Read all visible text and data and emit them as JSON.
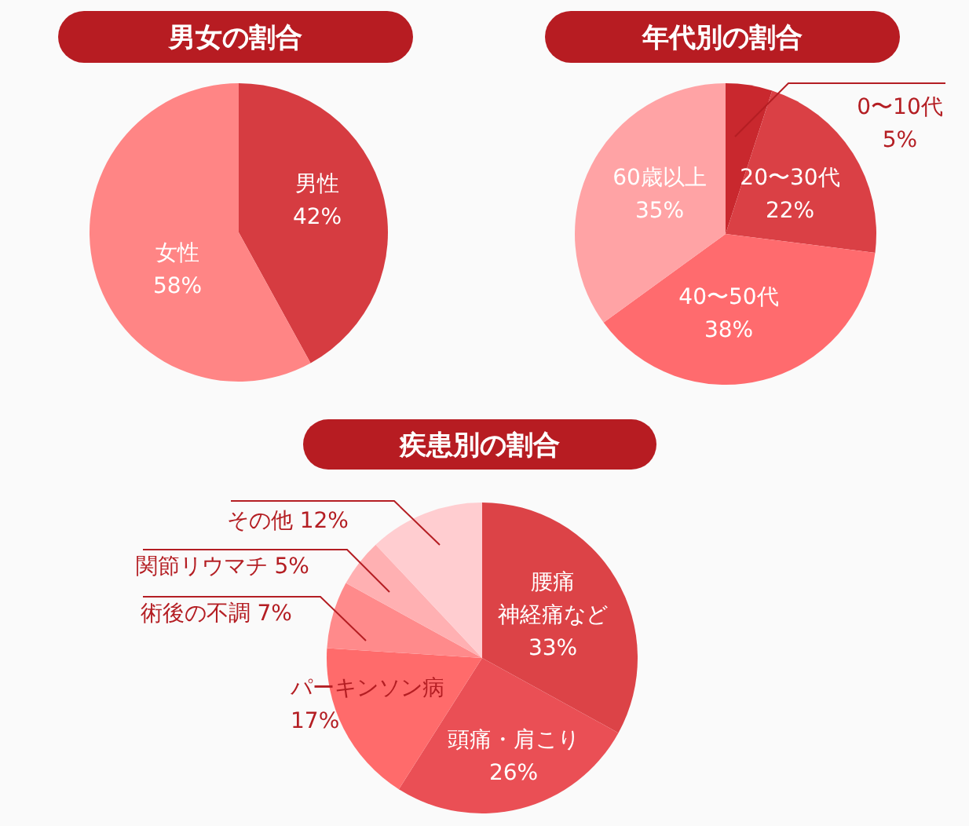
{
  "chart_data": [
    {
      "type": "pie",
      "title": "男女の割合",
      "categories": [
        "男性",
        "女性"
      ],
      "values": [
        42,
        58
      ],
      "value_labels": [
        "42%",
        "58%"
      ],
      "colors": [
        "#d63c41",
        "#ff8585"
      ]
    },
    {
      "type": "pie",
      "title": "年代別の割合",
      "categories": [
        "0〜10代",
        "20〜30代",
        "40〜50代",
        "60歳以上"
      ],
      "values": [
        5,
        22,
        38,
        35
      ],
      "value_labels": [
        "5%",
        "22%",
        "38%",
        "35%"
      ],
      "colors": [
        "#c9282e",
        "#da4045",
        "#ff6b6e",
        "#ffa3a5"
      ]
    },
    {
      "type": "pie",
      "title": "疾患別の割合",
      "categories": [
        "腰痛神経痛など",
        "頭痛・肩こり",
        "パーキンソン病",
        "術後の不調",
        "関節リウマチ",
        "その他"
      ],
      "values": [
        33,
        26,
        17,
        7,
        5,
        12
      ],
      "value_labels": [
        "33%",
        "26%",
        "17%",
        "7%",
        "5%",
        "12%"
      ],
      "colors": [
        "#dc4347",
        "#ea4f55",
        "#ff6b6b",
        "#ff8a8b",
        "#ffb0b2",
        "#ffcdd0"
      ]
    }
  ]
}
